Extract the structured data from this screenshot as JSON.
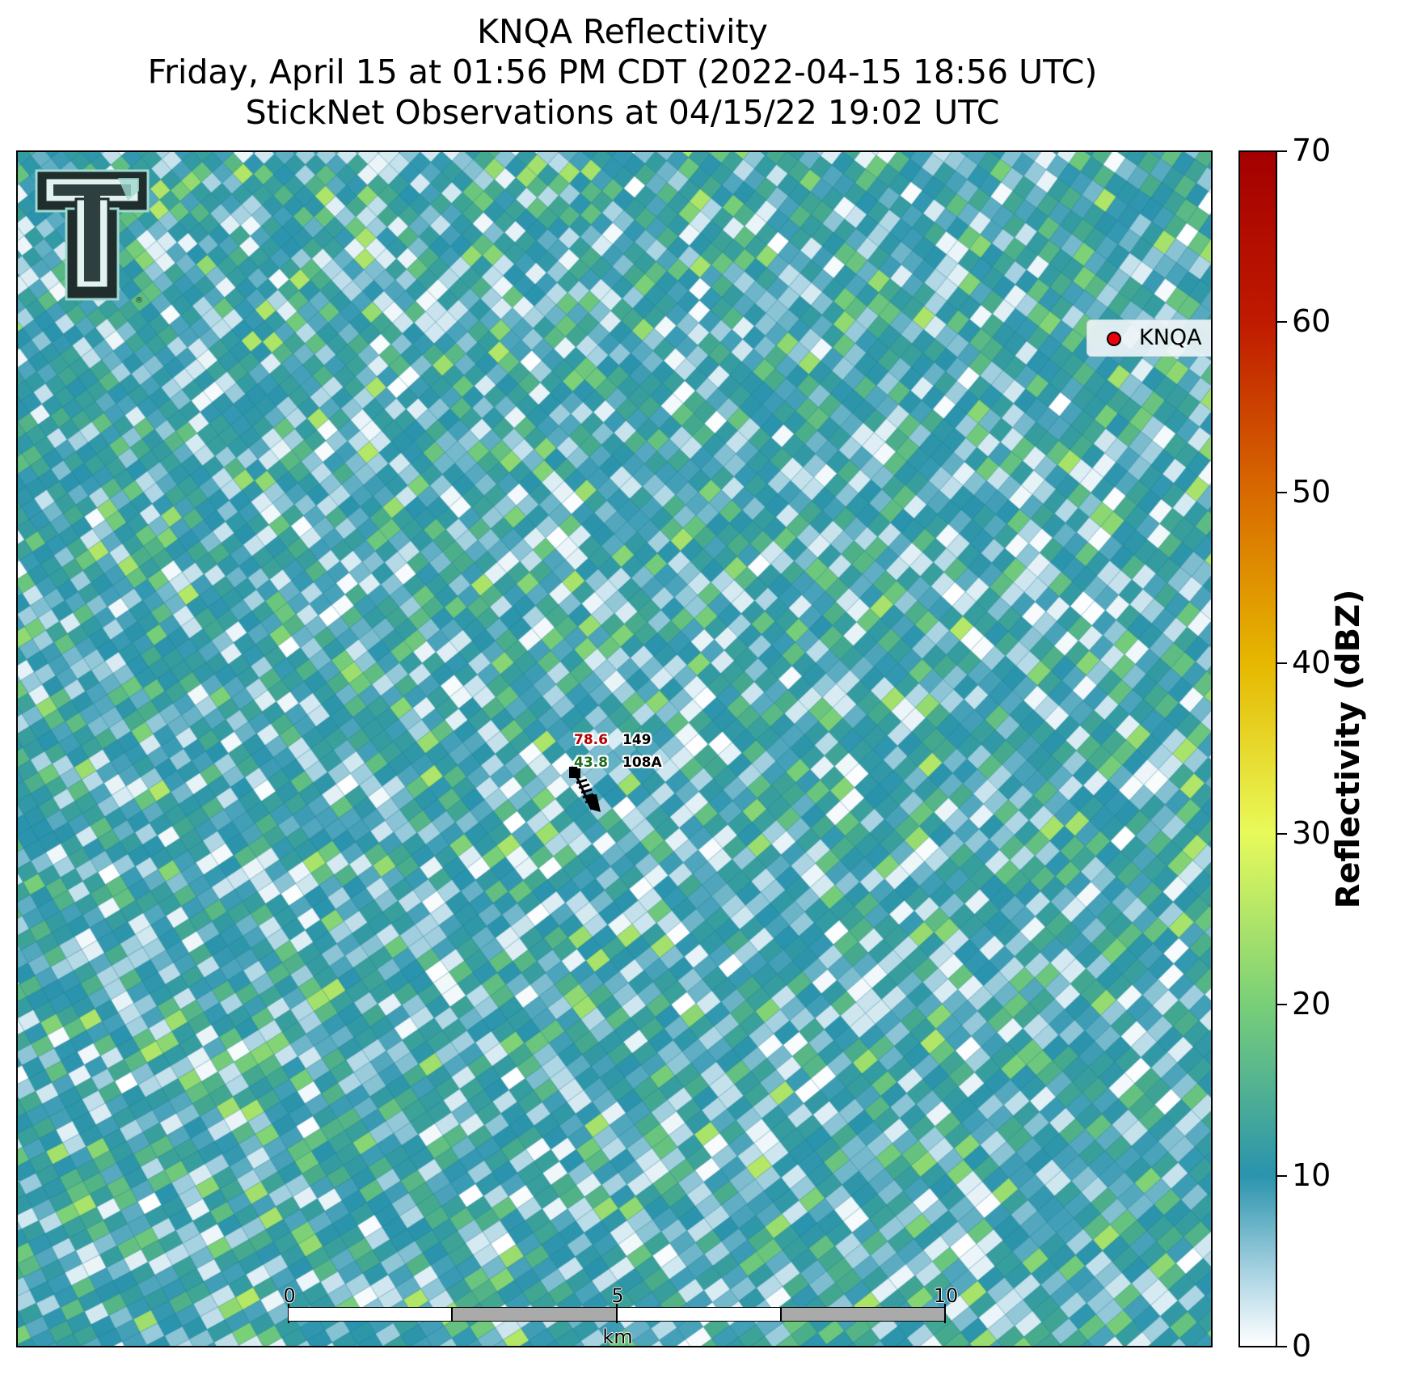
{
  "title": {
    "line1": "KNQA Reflectivity",
    "line2": "Friday, April 15 at 01:56 PM CDT (2022-04-15 18:56 UTC)",
    "line3": "StickNet Observations at 04/15/22 19:02 UTC"
  },
  "logo": {
    "name": "texas-tech-double-t-logo",
    "mark": "®"
  },
  "legend": {
    "label": "KNQA",
    "marker_color": "#e8000b"
  },
  "station": {
    "temperature": "78.6",
    "pressure": "149",
    "dewpoint": "43.8",
    "id": "108A",
    "temperature_color": "#b30000",
    "dewpoint_color": "#1d6b1d"
  },
  "scalebar": {
    "labels": [
      "0",
      "5",
      "10"
    ],
    "unit": "km"
  },
  "colorbar": {
    "title": "Reflectivity (dBZ)",
    "ticks": [
      "0",
      "10",
      "20",
      "30",
      "40",
      "50",
      "60",
      "70"
    ],
    "range": [
      0,
      70
    ],
    "colors": [
      "#ffffff",
      "#2a93ad",
      "#78cf78",
      "#e8fa5a",
      "#e6b800",
      "#d86a00",
      "#c01a00",
      "#a30000"
    ]
  },
  "chart_data": {
    "type": "heatmap",
    "title": "KNQA Reflectivity",
    "variable": "Reflectivity",
    "units": "dBZ",
    "colorbar_range": [
      0,
      70
    ],
    "typical_values_dbz": [
      0,
      22
    ],
    "dominant_value_dbz": 10
  }
}
